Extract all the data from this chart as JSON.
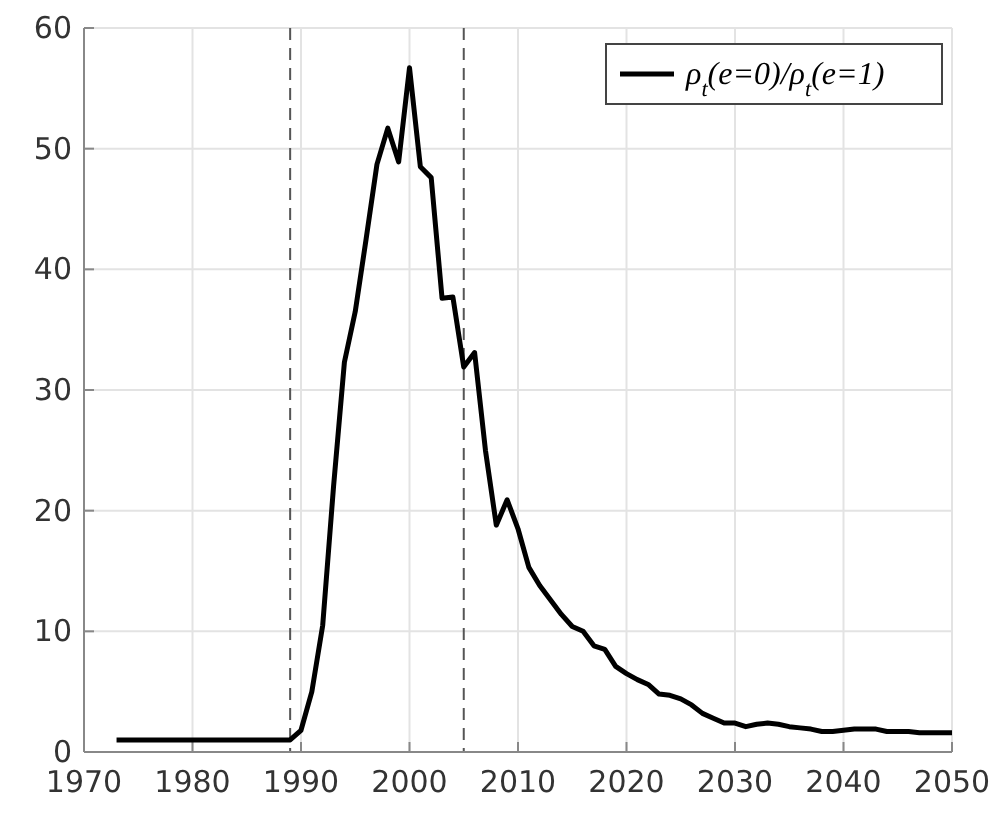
{
  "chart_data": {
    "type": "line",
    "x": [
      1973,
      1974,
      1975,
      1976,
      1977,
      1978,
      1979,
      1980,
      1981,
      1982,
      1983,
      1984,
      1985,
      1986,
      1987,
      1988,
      1989,
      1990,
      1991,
      1992,
      1993,
      1994,
      1995,
      1996,
      1997,
      1998,
      1999,
      2000,
      2001,
      2002,
      2003,
      2004,
      2005,
      2006,
      2007,
      2008,
      2009,
      2010,
      2011,
      2012,
      2013,
      2014,
      2015,
      2016,
      2017,
      2018,
      2019,
      2020,
      2021,
      2022,
      2023,
      2024,
      2025,
      2026,
      2027,
      2028,
      2029,
      2030,
      2031,
      2032,
      2033,
      2034,
      2035,
      2036,
      2037,
      2038,
      2039,
      2040,
      2041,
      2042,
      2043,
      2044,
      2045,
      2046,
      2047,
      2048,
      2049,
      2050
    ],
    "series": [
      {
        "name": "ρ$_{t}$(e=0)/ρ$_{t}$(e=1)",
        "color": "#000000",
        "values": [
          1,
          1,
          1,
          1,
          1,
          1,
          1,
          1,
          1,
          1,
          1,
          1,
          1,
          1,
          1,
          1,
          1,
          1.8,
          5,
          10.5,
          22,
          32.3,
          36.5,
          42.5,
          48.7,
          51.7,
          48.9,
          56.7,
          48.5,
          47.6,
          37.6,
          37.7,
          31.9,
          33.1,
          25,
          18.8,
          20.9,
          18.5,
          15.3,
          13.8,
          12.6,
          11.4,
          10.4,
          10,
          8.8,
          8.5,
          7.1,
          6.5,
          6,
          5.6,
          4.8,
          4.7,
          4.4,
          3.9,
          3.2,
          2.8,
          2.4,
          2.4,
          2.1,
          2.3,
          2.4,
          2.3,
          2.1,
          2,
          1.9,
          1.7,
          1.7,
          1.8,
          1.9,
          1.9,
          1.9,
          1.7,
          1.7,
          1.7,
          1.6,
          1.6,
          1.6,
          1.6
        ]
      }
    ],
    "xlim": [
      1970,
      2050
    ],
    "xticks": [
      1970,
      1980,
      1990,
      2000,
      2010,
      2020,
      2030,
      2040,
      2050
    ],
    "ylim": [
      0,
      60
    ],
    "yticks": [
      0,
      10,
      20,
      30,
      40,
      50,
      60
    ],
    "grid": true,
    "legend": "top right",
    "line_style": "solid",
    "ref_lines": [
      {
        "axis": "x",
        "value": 1989,
        "color": "#555555",
        "line_style": "dashed"
      },
      {
        "axis": "x",
        "value": 2005,
        "color": "#555555",
        "line_style": "dashed"
      }
    ]
  }
}
